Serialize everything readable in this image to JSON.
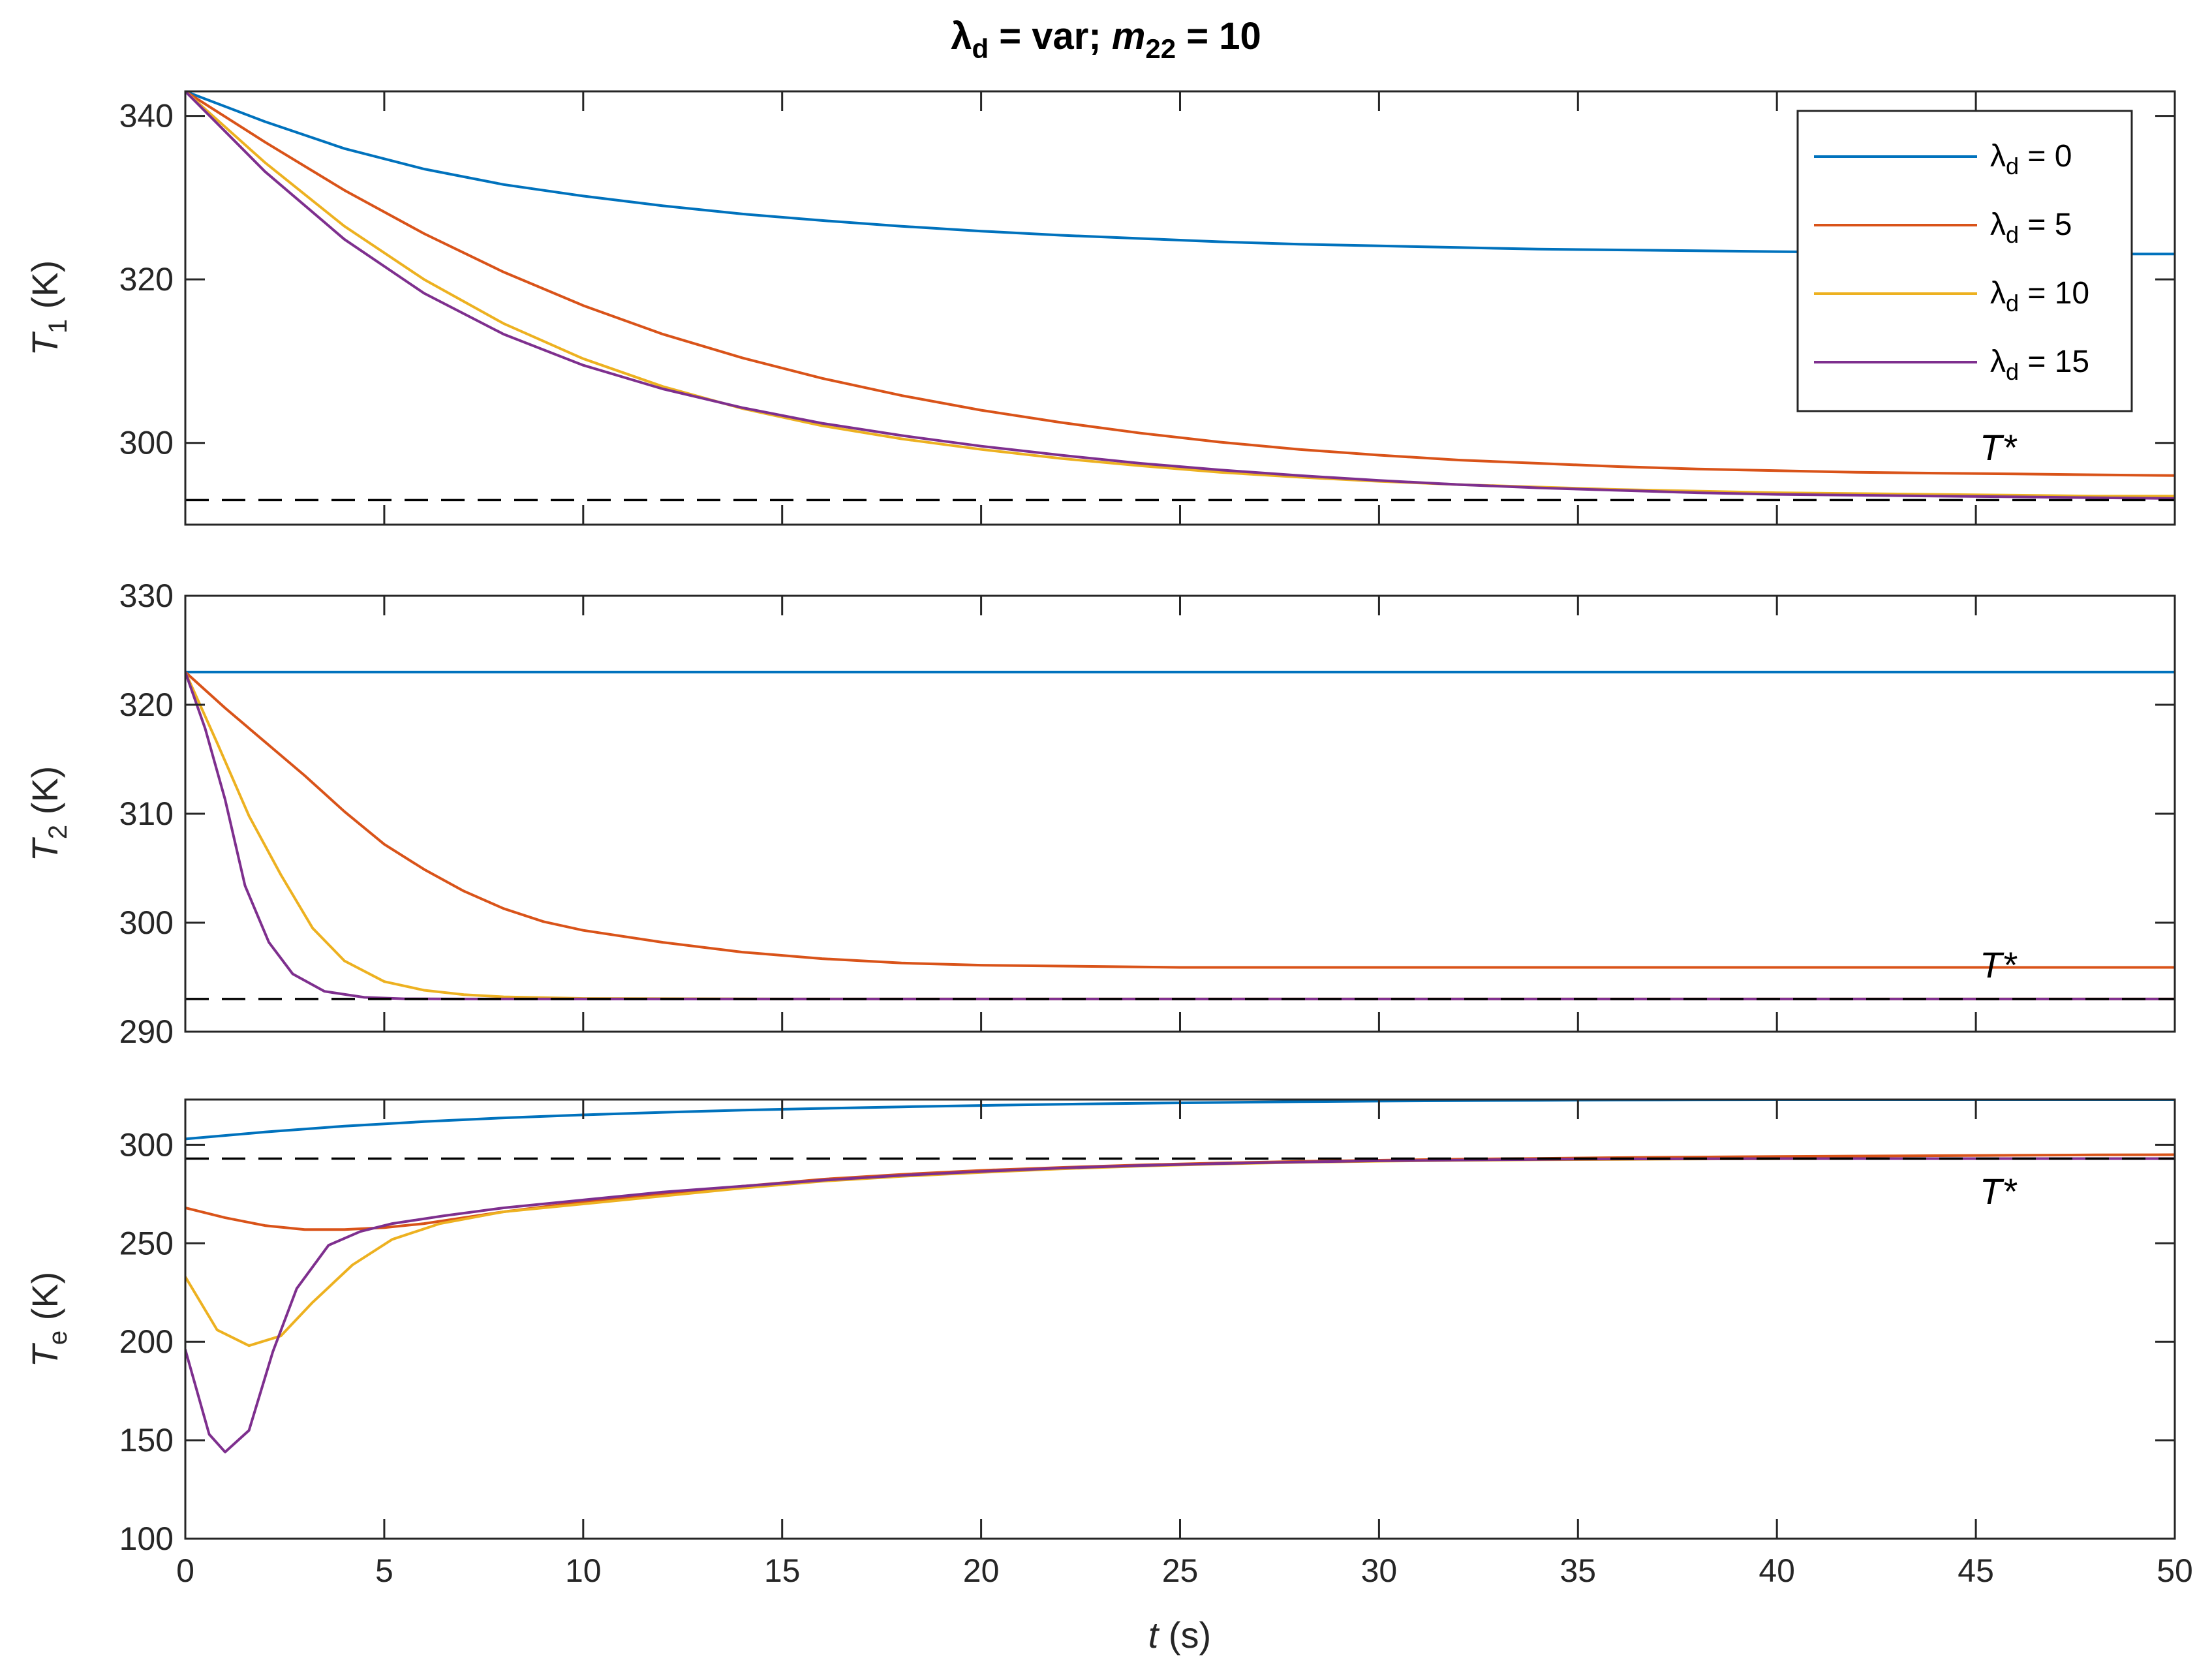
{
  "figure": {
    "title_main": "λ",
    "title_main_sub": "d",
    "title_mid": " = var; ",
    "title_var": "m",
    "title_var_sub": "22",
    "title_end": " = 10"
  },
  "colors": {
    "lambda_d_0": "#0072BD",
    "lambda_d_5": "#D95319",
    "lambda_d_10": "#EDB120",
    "lambda_d_15": "#7E2F8E",
    "reference": "#000000"
  },
  "chart_data": [
    {
      "type": "line",
      "ylabel_main": "T",
      "ylabel_sub": "1",
      "ylabel_unit": " (K)",
      "xlim": [
        0,
        50
      ],
      "ylim": [
        290,
        343
      ],
      "yticks": [
        300,
        320,
        340
      ],
      "xticks": [
        0,
        5,
        10,
        15,
        20,
        25,
        30,
        35,
        40,
        45,
        50
      ],
      "show_xtick_labels": false,
      "reference": {
        "label": "T*",
        "y": 293
      },
      "legend_position": "top-right",
      "legend": [
        {
          "prefix": "λ",
          "sub": "d",
          "suffix": " = 0"
        },
        {
          "prefix": "λ",
          "sub": "d",
          "suffix": " = 5"
        },
        {
          "prefix": "λ",
          "sub": "d",
          "suffix": " = 10"
        },
        {
          "prefix": "λ",
          "sub": "d",
          "suffix": " = 15"
        }
      ],
      "series": [
        {
          "color_key": "lambda_d_0",
          "x": [
            0,
            2,
            4,
            6,
            8,
            10,
            12,
            14,
            16,
            18,
            20,
            22,
            24,
            26,
            28,
            30,
            32,
            34,
            36,
            38,
            40,
            42,
            44,
            46,
            48,
            50
          ],
          "y": [
            343,
            339.3,
            336.0,
            333.5,
            331.6,
            330.2,
            329.0,
            328.0,
            327.2,
            326.5,
            325.9,
            325.4,
            325.0,
            324.6,
            324.3,
            324.1,
            323.9,
            323.7,
            323.6,
            323.5,
            323.4,
            323.3,
            323.2,
            323.2,
            323.1,
            323.1
          ]
        },
        {
          "color_key": "lambda_d_5",
          "x": [
            0,
            2,
            4,
            6,
            8,
            10,
            12,
            14,
            16,
            18,
            20,
            22,
            24,
            26,
            28,
            30,
            32,
            34,
            36,
            38,
            40,
            42,
            44,
            46,
            48,
            50
          ],
          "y": [
            343,
            336.8,
            330.9,
            325.6,
            320.9,
            316.8,
            313.3,
            310.4,
            307.9,
            305.8,
            304.0,
            302.5,
            301.2,
            300.1,
            299.2,
            298.5,
            297.9,
            297.5,
            297.1,
            296.8,
            296.6,
            296.4,
            296.3,
            296.2,
            296.1,
            296.0
          ]
        },
        {
          "color_key": "lambda_d_10",
          "x": [
            0,
            2,
            4,
            6,
            8,
            10,
            12,
            14,
            16,
            18,
            20,
            22,
            24,
            26,
            28,
            30,
            32,
            34,
            36,
            38,
            40,
            42,
            44,
            46,
            48,
            50
          ],
          "y": [
            343,
            334.3,
            326.5,
            320.0,
            314.6,
            310.3,
            306.9,
            304.2,
            302.1,
            300.5,
            299.2,
            298.1,
            297.2,
            296.4,
            295.8,
            295.3,
            294.9,
            294.6,
            294.3,
            294.1,
            293.9,
            293.8,
            293.7,
            293.6,
            293.5,
            293.5
          ]
        },
        {
          "color_key": "lambda_d_15",
          "x": [
            0,
            2,
            4,
            6,
            8,
            10,
            12,
            14,
            16,
            18,
            20,
            22,
            24,
            26,
            28,
            30,
            32,
            34,
            36,
            38,
            40,
            42,
            44,
            46,
            48,
            50
          ],
          "y": [
            343,
            333.2,
            324.9,
            318.3,
            313.3,
            309.5,
            306.6,
            304.3,
            302.4,
            300.9,
            299.6,
            298.5,
            297.5,
            296.7,
            296.0,
            295.4,
            294.9,
            294.5,
            294.2,
            293.9,
            293.7,
            293.6,
            293.5,
            293.4,
            293.3,
            293.2
          ]
        }
      ]
    },
    {
      "type": "line",
      "ylabel_main": "T",
      "ylabel_sub": "2",
      "ylabel_unit": " (K)",
      "xlim": [
        0,
        50
      ],
      "ylim": [
        290,
        330
      ],
      "yticks": [
        290,
        300,
        310,
        320,
        330
      ],
      "xticks": [
        0,
        5,
        10,
        15,
        20,
        25,
        30,
        35,
        40,
        45,
        50
      ],
      "show_xtick_labels": false,
      "reference": {
        "label": "T*",
        "y": 293
      },
      "series": [
        {
          "color_key": "lambda_d_0",
          "x": [
            0,
            10,
            20,
            30,
            40,
            50
          ],
          "y": [
            323,
            323,
            323,
            323,
            323,
            323
          ]
        },
        {
          "color_key": "lambda_d_5",
          "x": [
            0,
            1,
            2,
            3,
            4,
            5,
            6,
            7,
            8,
            9,
            10,
            12,
            14,
            16,
            18,
            20,
            25,
            30,
            35,
            40,
            45,
            50
          ],
          "y": [
            323,
            319.7,
            316.6,
            313.5,
            310.2,
            307.2,
            304.9,
            302.9,
            301.3,
            300.1,
            299.3,
            298.2,
            297.3,
            296.7,
            296.3,
            296.1,
            295.9,
            295.9,
            295.9,
            295.9,
            295.9,
            295.9
          ]
        },
        {
          "color_key": "lambda_d_10",
          "x": [
            0,
            0.8,
            1.6,
            2.4,
            3.2,
            4.0,
            5.0,
            6.0,
            7.0,
            8.0,
            10.0,
            15,
            20,
            30,
            40,
            50
          ],
          "y": [
            323,
            316.5,
            309.8,
            304.4,
            299.5,
            296.5,
            294.6,
            293.8,
            293.4,
            293.2,
            293.05,
            293,
            293,
            293,
            293,
            293
          ]
        },
        {
          "color_key": "lambda_d_15",
          "x": [
            0,
            0.5,
            1.0,
            1.5,
            2.1,
            2.7,
            3.5,
            4.5,
            5.5,
            7,
            10,
            20,
            30,
            40,
            50
          ],
          "y": [
            323,
            317.8,
            311.3,
            303.4,
            298.2,
            295.3,
            293.7,
            293.15,
            293.02,
            293,
            293,
            293,
            293,
            293,
            293
          ]
        }
      ]
    },
    {
      "type": "line",
      "ylabel_main": "T",
      "ylabel_sub": "e",
      "ylabel_unit": " (K)",
      "xlabel_main": "t",
      "xlabel_unit": " (s)",
      "xlim": [
        0,
        50
      ],
      "ylim": [
        100,
        323
      ],
      "yticks": [
        100,
        150,
        200,
        250,
        300
      ],
      "xticks": [
        0,
        5,
        10,
        15,
        20,
        25,
        30,
        35,
        40,
        45,
        50
      ],
      "show_xtick_labels": true,
      "reference": {
        "label": "T*",
        "y": 293
      },
      "series": [
        {
          "color_key": "lambda_d_0",
          "x": [
            0,
            2,
            4,
            6,
            8,
            10,
            12,
            14,
            16,
            18,
            20,
            22,
            24,
            26,
            28,
            30,
            32,
            34,
            36,
            38,
            40,
            42,
            44,
            46,
            48,
            50
          ],
          "y": [
            303,
            306.5,
            309.5,
            311.8,
            313.7,
            315.2,
            316.5,
            317.6,
            318.5,
            319.3,
            320.0,
            320.6,
            321.1,
            321.5,
            321.9,
            322.2,
            322.4,
            322.6,
            322.8,
            322.9,
            323.0,
            323.0,
            323.0,
            323.0,
            323.0,
            323.0
          ]
        },
        {
          "color_key": "lambda_d_5",
          "x": [
            0,
            1,
            2,
            3,
            4,
            5,
            6,
            8,
            10,
            12,
            14,
            16,
            18,
            20,
            22,
            24,
            26,
            28,
            30,
            32,
            34,
            36,
            38,
            40,
            42,
            44,
            46,
            48,
            50
          ],
          "y": [
            268,
            263,
            259,
            257,
            257,
            258,
            260,
            266,
            271,
            275,
            279,
            282.5,
            285,
            287,
            288.5,
            289.8,
            290.8,
            291.6,
            292.2,
            292.7,
            293.1,
            293.5,
            293.8,
            294.1,
            294.3,
            294.5,
            294.7,
            294.9,
            295.0
          ]
        },
        {
          "color_key": "lambda_d_10",
          "x": [
            0,
            0.8,
            1.6,
            2.4,
            3.2,
            4.2,
            5.2,
            6.4,
            8,
            10,
            12,
            14,
            16,
            18,
            20,
            22,
            24,
            26,
            28,
            30,
            32,
            34,
            36,
            38,
            40,
            42,
            44,
            46,
            48,
            50
          ],
          "y": [
            233,
            206,
            198,
            203,
            220,
            239,
            252,
            260,
            266,
            270,
            274,
            278,
            281.5,
            284,
            286,
            287.8,
            289.2,
            290.3,
            291.1,
            291.7,
            292.1,
            292.4,
            292.6,
            292.8,
            292.9,
            293.0,
            293.0,
            293.0,
            293.0,
            293.0
          ]
        },
        {
          "color_key": "lambda_d_15",
          "x": [
            0,
            0.6,
            1.0,
            1.6,
            2.2,
            2.8,
            3.6,
            4.4,
            5.2,
            6.5,
            8,
            10,
            12,
            14,
            16,
            18,
            20,
            22,
            24,
            26,
            28,
            30,
            32,
            34,
            36,
            38,
            40,
            42,
            44,
            46,
            48,
            50
          ],
          "y": [
            196,
            153,
            144,
            155,
            195,
            227,
            249,
            256,
            260,
            264,
            268,
            272,
            276,
            279,
            282,
            284.5,
            286.5,
            288.2,
            289.5,
            290.5,
            291.3,
            291.9,
            292.3,
            292.6,
            292.8,
            292.9,
            293.0,
            293.0,
            293.0,
            293.0,
            293.0,
            293.0
          ]
        }
      ]
    }
  ]
}
